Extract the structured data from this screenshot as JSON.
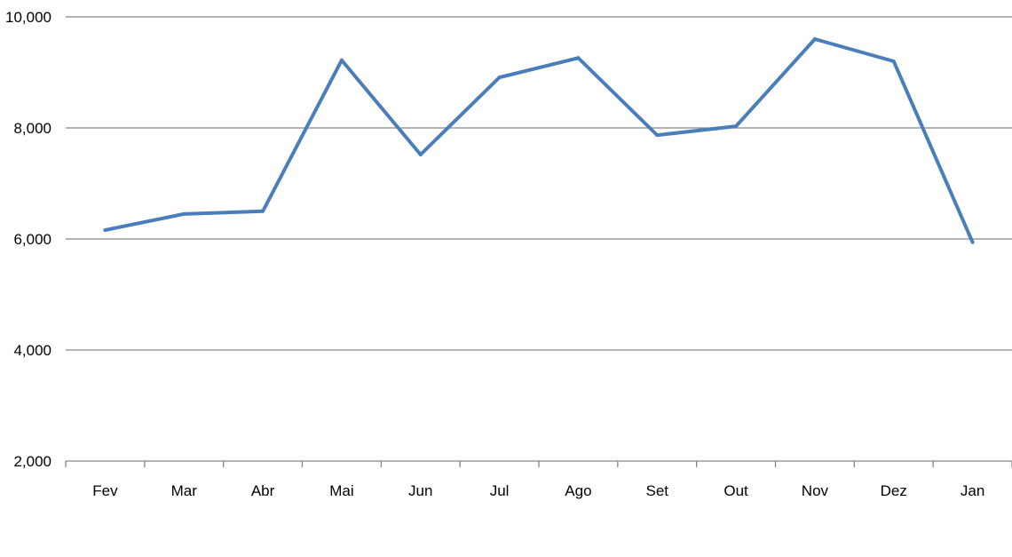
{
  "chart_data": {
    "type": "line",
    "title": "",
    "xlabel": "",
    "ylabel": "",
    "categories": [
      "Fev",
      "Mar",
      "Abr",
      "Mai",
      "Jun",
      "Jul",
      "Ago",
      "Set",
      "Out",
      "Nov",
      "Dez",
      "Jan"
    ],
    "series": [
      {
        "values": [
          6160,
          6450,
          6500,
          9220,
          7520,
          8910,
          9260,
          7870,
          8030,
          9600,
          9200,
          5940
        ],
        "color": "#4a7ebb"
      }
    ],
    "ylim": [
      2000,
      10000
    ],
    "yticks": [
      2000,
      4000,
      6000,
      8000,
      10000
    ],
    "ytick_labels": [
      "2,000",
      "4,000",
      "6,000",
      "8,000",
      "10,000"
    ],
    "grid": "horizontal",
    "legend": "none",
    "colors": {
      "gridline": "#868686",
      "line": "#4a7ebb"
    }
  }
}
